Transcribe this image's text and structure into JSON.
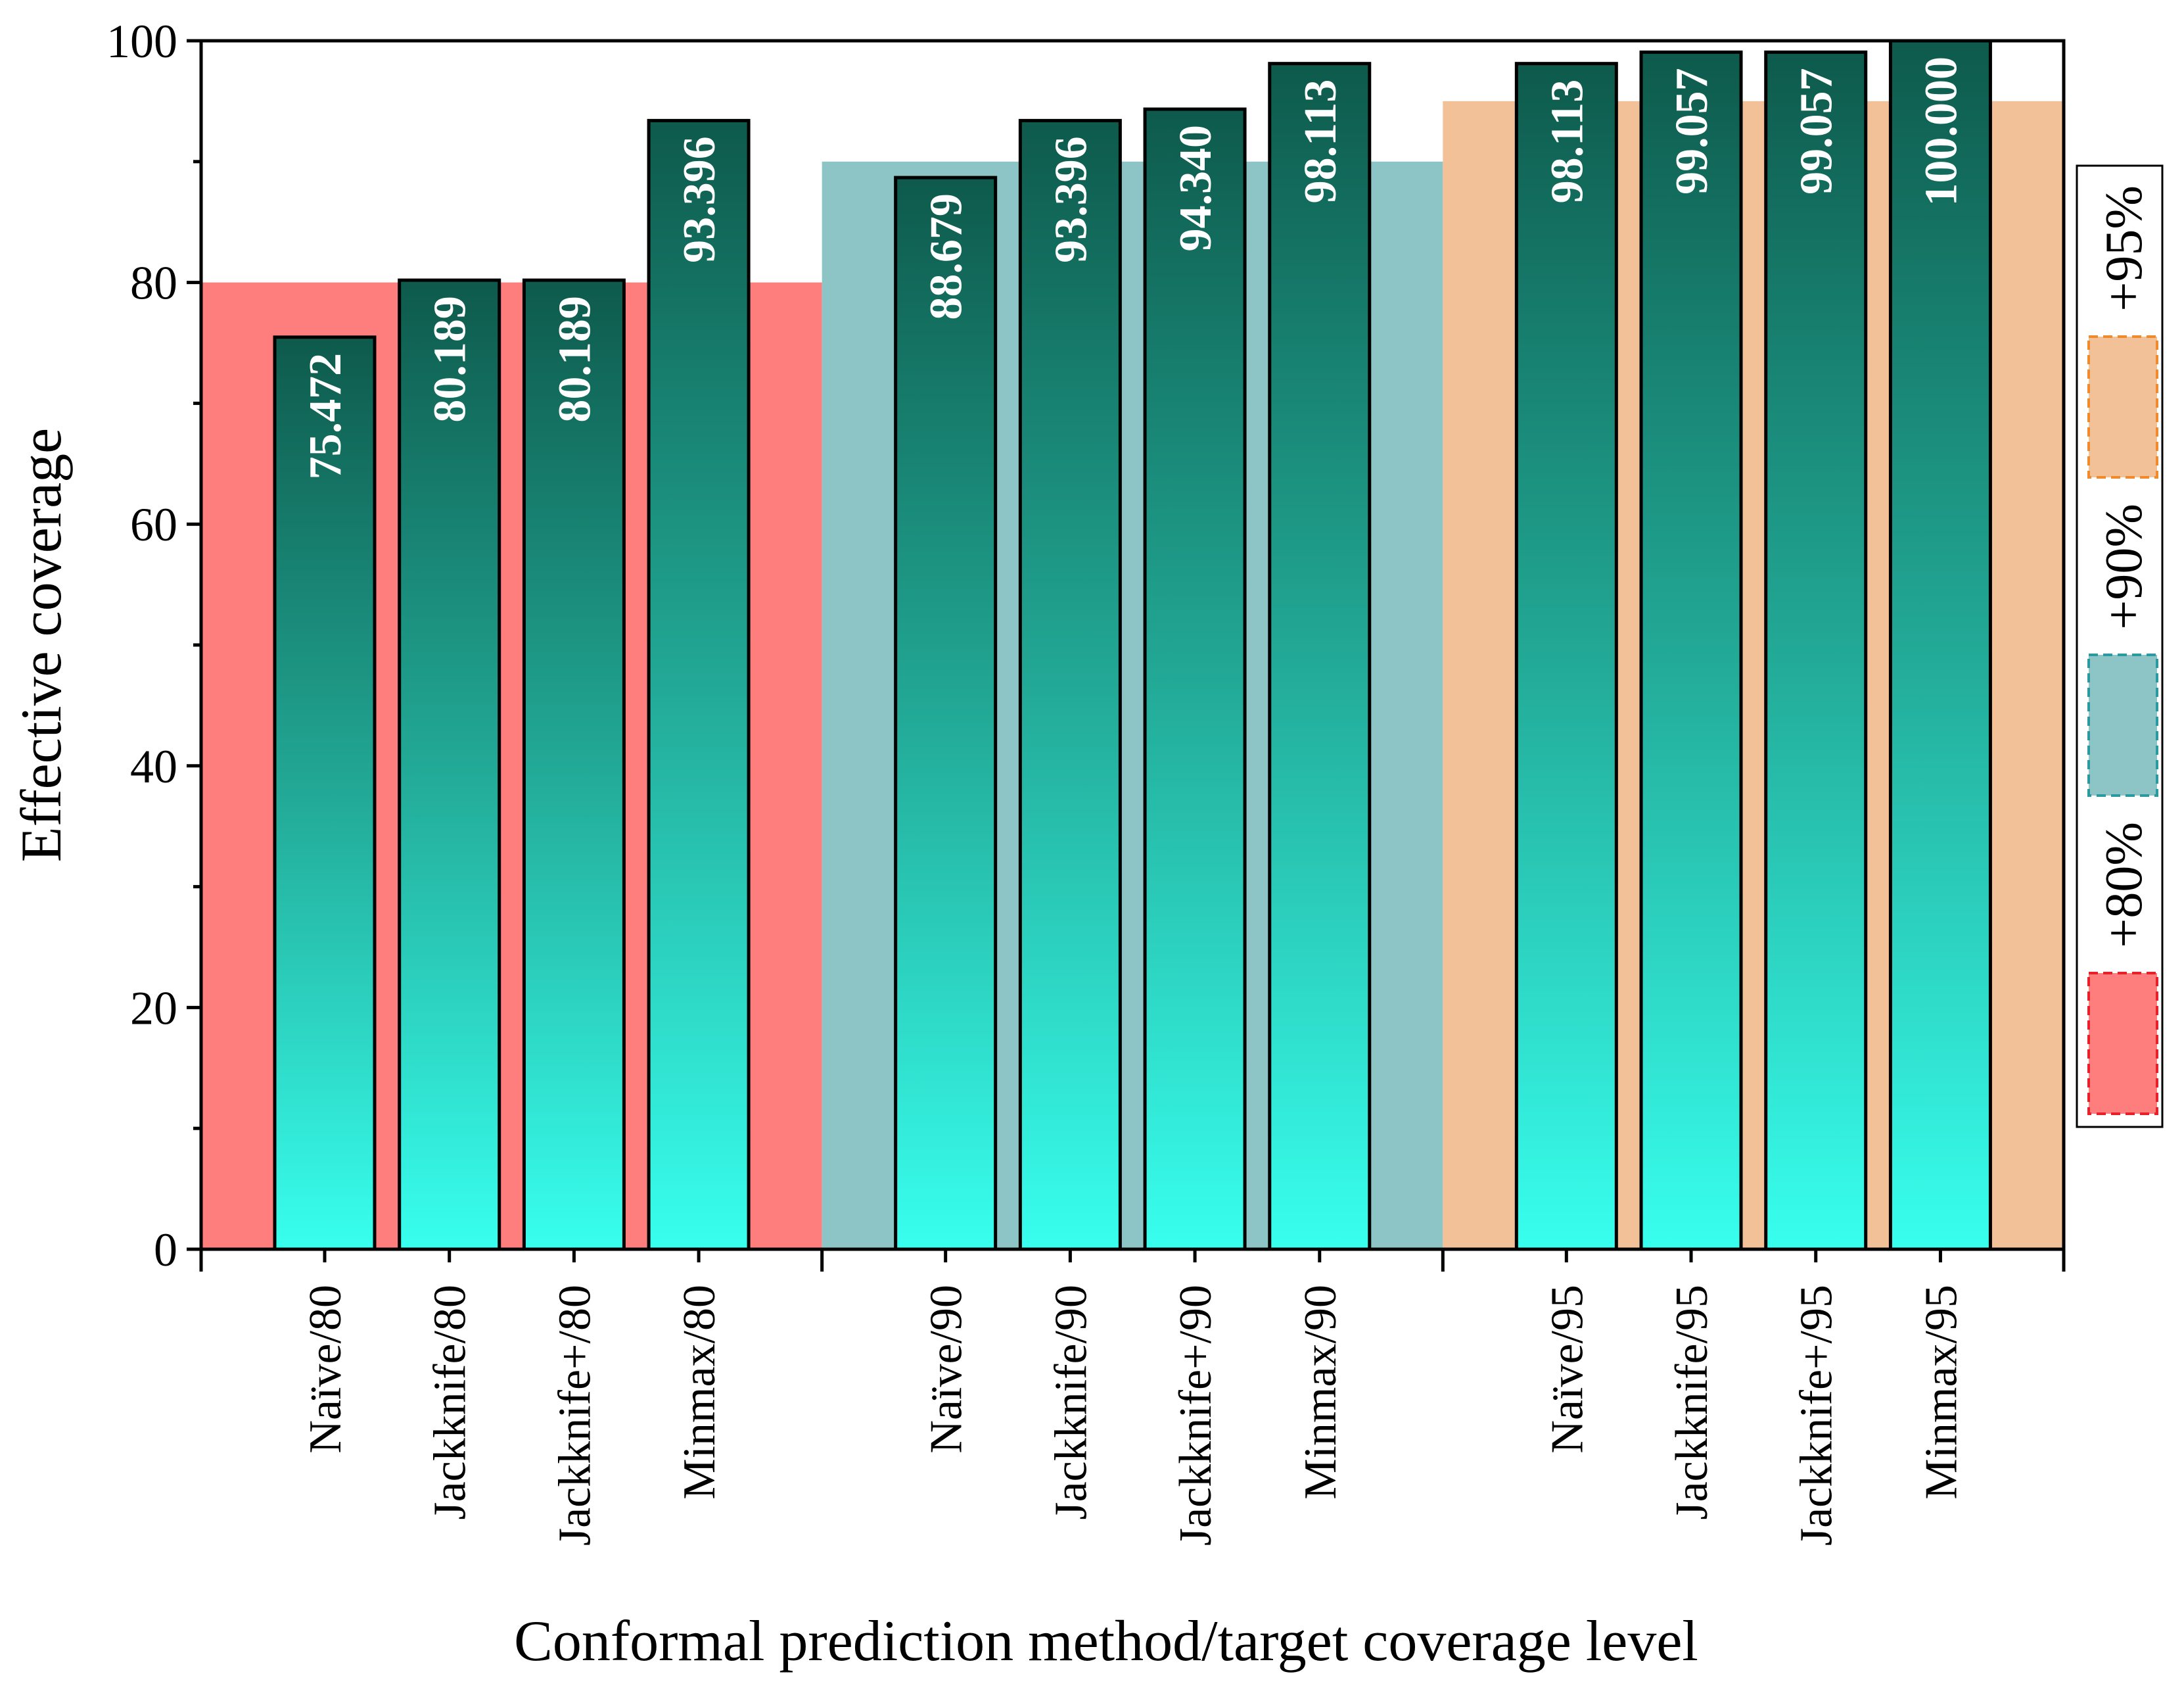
{
  "chart_data": {
    "type": "bar",
    "title": "",
    "xlabel": "Conformal prediction method/target coverage level",
    "ylabel": "Effective coverage",
    "ylim": [
      0,
      100
    ],
    "yticks": [
      0,
      20,
      40,
      60,
      80,
      100
    ],
    "ytick_labels": [
      "0",
      "20",
      "40",
      "60",
      "80",
      "100"
    ],
    "grid": false,
    "categories": [
      "Naïve/80",
      "Jackknife/80",
      "Jackknife+/80",
      "Minmax/80",
      "Naïve/90",
      "Jackknife/90",
      "Jackknife+/90",
      "Minmax/90",
      "Naïve/95",
      "Jackknife/95",
      "Jackknife+/95",
      "Minmax/95"
    ],
    "values": [
      75.472,
      80.189,
      80.189,
      93.396,
      88.679,
      93.396,
      94.34,
      98.113,
      98.113,
      99.057,
      99.057,
      100.0
    ],
    "value_labels": [
      "75.472",
      "80.189",
      "80.189",
      "93.396",
      "88.679",
      "93.396",
      "94.340",
      "98.113",
      "98.113",
      "99.057",
      "99.057",
      "100.000"
    ],
    "bar_gradient": {
      "top": "#0e5a4c",
      "mid": "#22a996",
      "bottom": "#38ffee"
    },
    "bands": [
      {
        "label": "+80%",
        "value": 80,
        "from_category": 0,
        "to_category": 3,
        "color": "#fd7e7d",
        "edge": "#e8202a"
      },
      {
        "label": "+90%",
        "value": 90,
        "from_category": 4,
        "to_category": 7,
        "color": "#8dc5c7",
        "edge": "#2a9aa0"
      },
      {
        "label": "+95%",
        "value": 95,
        "from_category": 8,
        "to_category": 11,
        "color": "#f2c198",
        "edge": "#ef8a2d"
      }
    ],
    "legend": {
      "placement": "right",
      "entries": [
        "+95%",
        "+90%",
        "+80%"
      ]
    }
  }
}
